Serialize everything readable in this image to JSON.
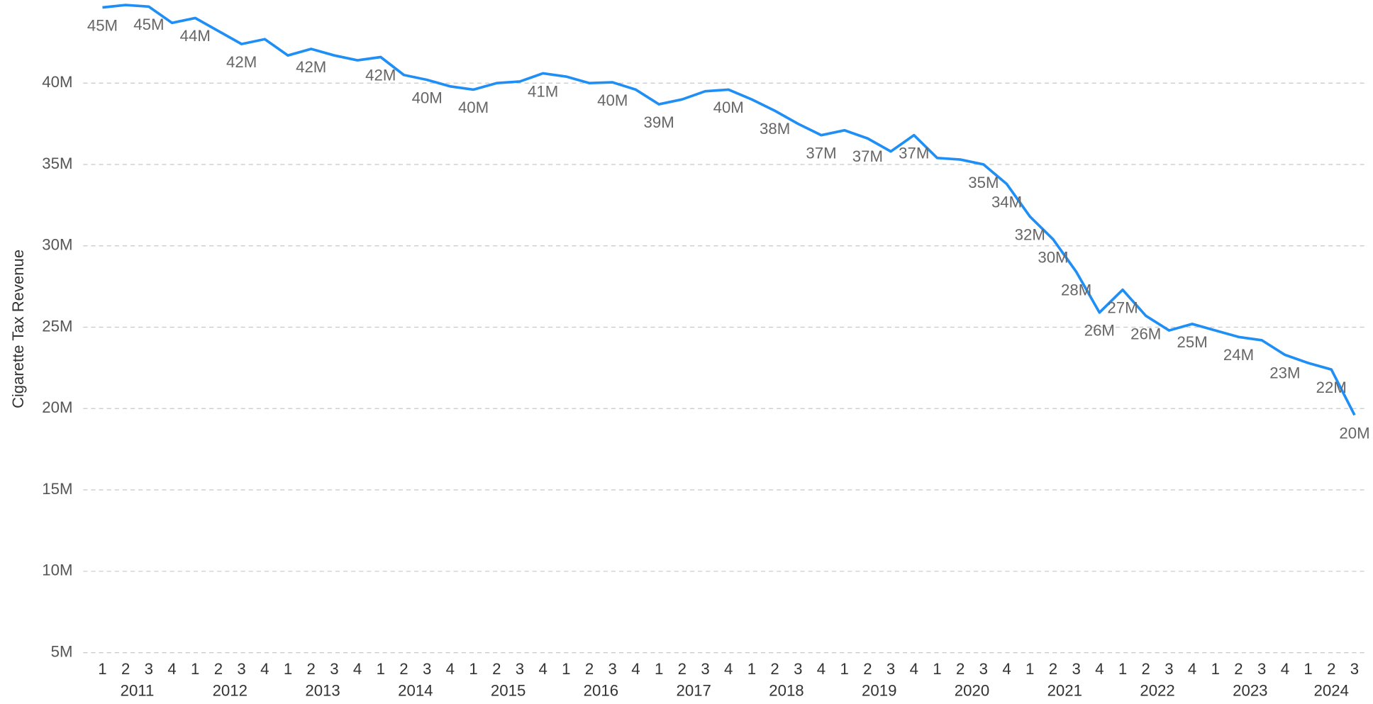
{
  "chart_data": {
    "type": "line",
    "y_axis_label": "Cigarette Tax Revenue",
    "categories": [
      "1",
      "2",
      "3",
      "4",
      "1",
      "2",
      "3",
      "4",
      "1",
      "2",
      "3",
      "4",
      "1",
      "2",
      "3",
      "4",
      "1",
      "2",
      "3",
      "4",
      "1",
      "2",
      "3",
      "4",
      "1",
      "2",
      "3",
      "4",
      "1",
      "2",
      "3",
      "4",
      "1",
      "2",
      "3",
      "4",
      "1",
      "2",
      "3",
      "4",
      "1",
      "2",
      "3",
      "4",
      "1",
      "2",
      "3",
      "4",
      "1",
      "2",
      "3",
      "4",
      "1",
      "2",
      "3"
    ],
    "years": [
      "2011",
      "2012",
      "2013",
      "2014",
      "2015",
      "2016",
      "2017",
      "2018",
      "2019",
      "2020",
      "2021",
      "2022",
      "2023",
      "2024"
    ],
    "series": [
      {
        "name": "Cigarette Tax Revenue",
        "color": "#1f8ff5",
        "values": [
          44.65,
          44.8,
          44.7,
          43.7,
          44.0,
          43.2,
          42.4,
          42.7,
          41.7,
          42.1,
          41.7,
          41.4,
          41.6,
          40.5,
          40.2,
          39.8,
          39.6,
          40.0,
          40.1,
          40.6,
          40.4,
          40.0,
          40.05,
          39.6,
          38.7,
          39.0,
          39.5,
          39.6,
          39.0,
          38.3,
          37.5,
          36.8,
          37.1,
          36.6,
          35.8,
          36.8,
          35.4,
          35.3,
          35.0,
          33.8,
          31.8,
          30.4,
          28.4,
          25.9,
          27.3,
          25.7,
          24.8,
          25.2,
          24.8,
          24.4,
          24.2,
          23.3,
          22.8,
          22.4,
          19.6
        ],
        "value_labels": [
          "45M",
          null,
          "45M",
          null,
          "44M",
          null,
          "42M",
          null,
          null,
          "42M",
          null,
          null,
          "42M",
          null,
          "40M",
          null,
          "40M",
          null,
          null,
          "41M",
          null,
          null,
          "40M",
          null,
          "39M",
          null,
          null,
          "40M",
          null,
          "38M",
          null,
          "37M",
          null,
          "37M",
          null,
          "37M",
          null,
          null,
          "35M",
          "34M",
          "32M",
          "30M",
          "28M",
          "26M",
          "27M",
          "26M",
          null,
          "25M",
          null,
          "24M",
          null,
          "23M",
          null,
          "22M",
          "20M"
        ]
      }
    ],
    "ylim": [
      5,
      45.5
    ],
    "yticks": [
      {
        "value": 5,
        "label": "5M"
      },
      {
        "value": 10,
        "label": "10M"
      },
      {
        "value": 15,
        "label": "15M"
      },
      {
        "value": 20,
        "label": "20M"
      },
      {
        "value": 25,
        "label": "25M"
      },
      {
        "value": 30,
        "label": "30M"
      },
      {
        "value": 35,
        "label": "35M"
      },
      {
        "value": 40,
        "label": "40M"
      }
    ],
    "grid": true
  }
}
